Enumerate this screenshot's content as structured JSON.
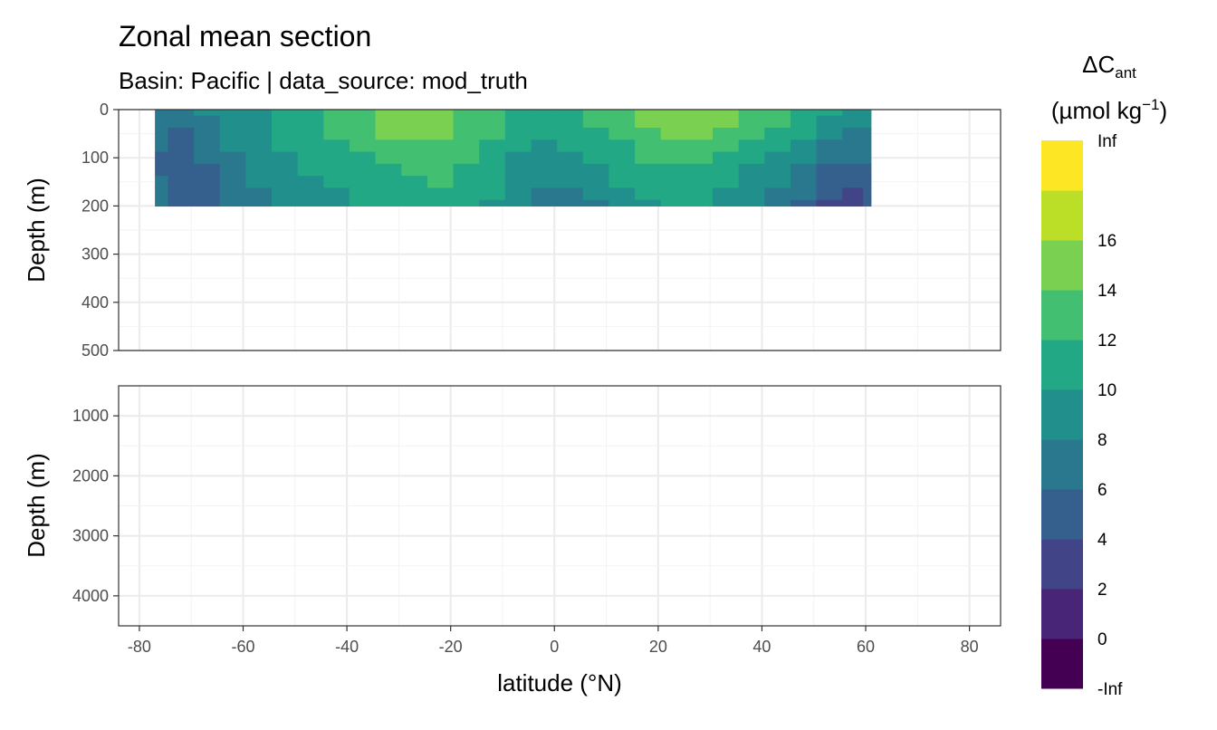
{
  "chart_data": {
    "type": "heatmap",
    "title": "Zonal mean section",
    "subtitle": "Basin: Pacific | data_source: mod_truth",
    "xlabel": "latitude (°N)",
    "ylabel": "Depth (m)",
    "x_ticks": [
      -80,
      -60,
      -40,
      -20,
      0,
      20,
      40,
      60,
      80
    ],
    "xlim": [
      -84,
      86
    ],
    "panels": [
      {
        "ylim": [
          0,
          500
        ],
        "y_ticks": [
          0,
          100,
          200,
          300,
          400,
          500
        ]
      },
      {
        "ylim": [
          500,
          4500
        ],
        "y_ticks": [
          1000,
          2000,
          3000,
          4000
        ]
      }
    ],
    "legend": {
      "title_main": "ΔC",
      "title_sub": "ant",
      "units_main": "(µmol kg",
      "units_sup": "−1",
      "units_close": ")",
      "placement": "right",
      "breaks": [
        "-Inf",
        "0",
        "2",
        "4",
        "6",
        "8",
        "10",
        "12",
        "14",
        "16",
        "Inf"
      ],
      "colors": [
        "#440154",
        "#482576",
        "#414487",
        "#35608D",
        "#2A788E",
        "#21908C",
        "#22A884",
        "#43BF71",
        "#7AD151",
        "#BBDF27",
        "#FDE725"
      ]
    },
    "depth_levels": [
      0,
      25,
      50,
      75,
      100,
      125,
      150,
      175,
      200
    ],
    "latitudes": [
      -77,
      -72,
      -67,
      -62,
      -57,
      -52,
      -47,
      -42,
      -37,
      -32,
      -27,
      -22,
      -17,
      -12,
      -7,
      -2,
      3,
      8,
      13,
      18,
      23,
      28,
      33,
      38,
      43,
      48,
      53,
      58,
      61
    ],
    "values": [
      [
        7,
        7,
        8,
        9,
        9,
        10,
        11,
        12,
        13,
        14,
        15,
        15,
        13,
        12,
        11,
        11,
        11,
        12,
        13,
        14,
        15,
        15,
        14,
        13,
        12,
        11,
        10,
        9,
        9
      ],
      [
        6,
        6,
        7,
        9,
        9,
        10,
        11,
        12,
        13,
        14,
        15,
        15,
        13,
        12,
        11,
        11,
        11,
        12,
        13,
        14,
        15,
        15,
        14,
        13,
        12,
        10,
        9,
        8,
        8
      ],
      [
        6,
        5,
        6,
        8,
        9,
        10,
        11,
        12,
        13,
        14,
        14,
        14,
        13,
        12,
        11,
        10,
        11,
        11,
        12,
        13,
        14,
        14,
        13,
        12,
        11,
        10,
        8,
        7,
        7
      ],
      [
        6,
        5,
        6,
        8,
        9,
        10,
        11,
        11,
        12,
        13,
        13,
        13,
        12,
        11,
        10,
        9,
        10,
        10,
        11,
        12,
        13,
        13,
        12,
        11,
        10,
        9,
        7,
        6,
        7
      ],
      [
        5,
        5,
        6,
        7,
        8,
        9,
        10,
        11,
        11,
        12,
        12,
        12,
        12,
        11,
        9,
        9,
        9,
        10,
        11,
        12,
        12,
        12,
        11,
        10,
        9,
        8,
        6,
        6,
        6
      ],
      [
        5,
        4,
        5,
        7,
        8,
        9,
        10,
        10,
        11,
        11,
        12,
        12,
        11,
        10,
        9,
        8,
        9,
        9,
        10,
        11,
        11,
        11,
        10,
        9,
        8,
        7,
        5,
        5,
        5
      ],
      [
        6,
        4,
        5,
        7,
        8,
        9,
        9,
        10,
        10,
        11,
        11,
        12,
        11,
        10,
        9,
        8,
        8,
        9,
        10,
        10,
        11,
        10,
        10,
        9,
        8,
        6,
        5,
        4,
        5
      ],
      [
        6,
        4,
        5,
        6,
        7,
        8,
        9,
        9,
        10,
        10,
        11,
        11,
        11,
        10,
        8,
        7,
        7,
        8,
        9,
        10,
        10,
        10,
        9,
        8,
        7,
        6,
        4,
        3,
        4
      ],
      [
        6,
        5,
        5,
        6,
        7,
        8,
        9,
        9,
        10,
        10,
        11,
        11,
        10,
        9,
        8,
        6,
        6,
        7,
        8,
        9,
        10,
        10,
        9,
        8,
        7,
        5,
        3,
        3,
        4
      ]
    ]
  }
}
